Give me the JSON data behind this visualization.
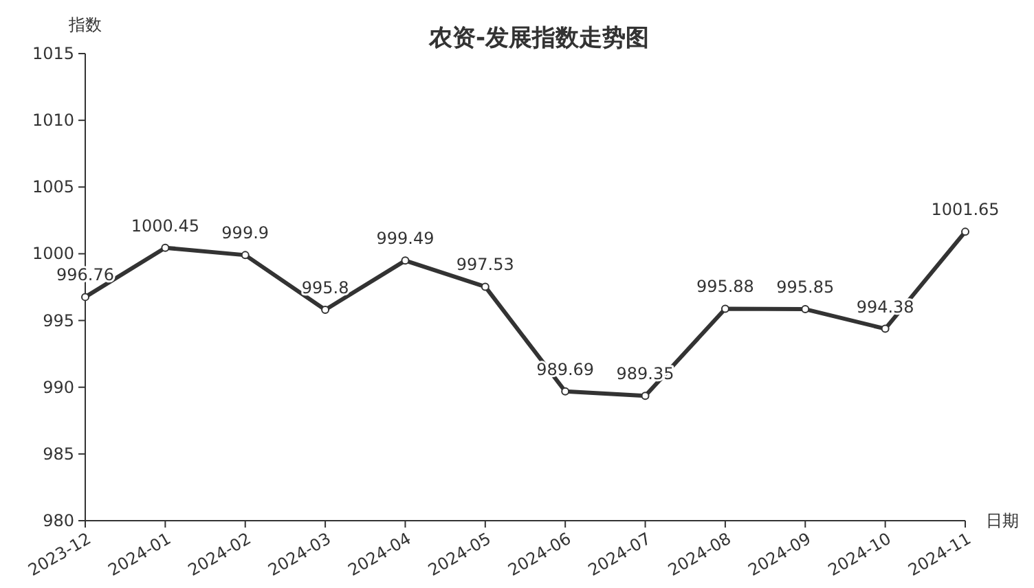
{
  "chart_data": {
    "type": "line",
    "title": "农资-发展指数走势图",
    "xlabel": "日期",
    "ylabel": "指数",
    "categories": [
      "2023-12",
      "2024-01",
      "2024-02",
      "2024-03",
      "2024-04",
      "2024-05",
      "2024-06",
      "2024-07",
      "2024-08",
      "2024-09",
      "2024-10",
      "2024-11"
    ],
    "series": [
      {
        "color": "#333333",
        "values": [
          996.76,
          1000.45,
          999.9,
          995.8,
          999.49,
          997.53,
          989.69,
          989.35,
          995.88,
          995.85,
          994.38,
          1001.65
        ]
      }
    ],
    "ylim": [
      980,
      1015
    ],
    "yticks": [
      980,
      985,
      990,
      995,
      1000,
      1005,
      1010,
      1015
    ],
    "grid": false,
    "marker": "circle",
    "line_style": "solid",
    "data_labels": true
  }
}
